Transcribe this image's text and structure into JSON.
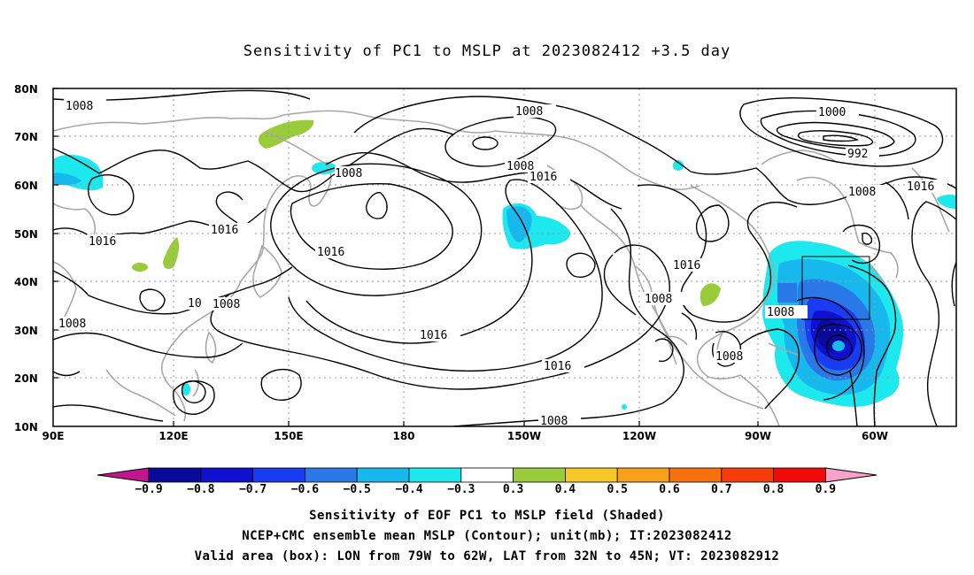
{
  "title": "Sensitivity of PC1 to MSLP at 2023082412 +3.5 day",
  "lat_labels": [
    "80N",
    "70N",
    "60N",
    "50N",
    "40N",
    "30N",
    "20N",
    "10N"
  ],
  "lon_labels": [
    "90E",
    "120E",
    "150E",
    "180",
    "150W",
    "120W",
    "90W",
    "60W"
  ],
  "contour_labels": {
    "c1008_nw": "1008",
    "c1008_aleut": "1008",
    "c1008_ber": "1008",
    "c1008_kam": "1008",
    "c1008_pac_n": "1008",
    "c1000_low": "1000",
    "c992_low": "992",
    "c1008_atl": "1008",
    "c1016_atl": "1016",
    "c1016_asia": "1016",
    "c1016_jp": "1016",
    "c1016_dateline": "1016",
    "c1016_aleut": "1016",
    "c1016_pac_c": "1016",
    "c1016_pac_s": "1016",
    "c1016_na": "1016",
    "c1008_japan_a": "10",
    "c1008_japan_b": "1008",
    "c1008_sea": "1008",
    "c1008_usa": "1008",
    "c1008_east": "1008",
    "c1008_gulf": "1008",
    "c1008_trop": "1008"
  },
  "colorbar": {
    "labels": [
      "-0.9",
      "-0.8",
      "-0.7",
      "-0.6",
      "-0.5",
      "-0.4",
      "-0.3",
      "0.3",
      "0.4",
      "0.5",
      "0.6",
      "0.7",
      "0.8",
      "0.9"
    ],
    "colors": [
      "#0a0a9a",
      "#1010d0",
      "#1a3cf0",
      "#2a78e8",
      "#17b8ee",
      "#1de8ee",
      "#ffffff",
      "#98cc3a",
      "#f5c828",
      "#f6a01c",
      "#f7720f",
      "#f53c0a",
      "#f00a0a"
    ],
    "left_tip_color": "#c0168e",
    "right_tip_color": "#f7a2c8"
  },
  "valid_box": {
    "lon_min": -79,
    "lon_max": -62,
    "lat_min": 32,
    "lat_max": 45
  },
  "footer": {
    "line1": "Sensitivity of EOF PC1 to MSLP field (Shaded)",
    "line2": "NCEP+CMC ensemble mean MSLP (Contour); unit(mb); IT:2023082412",
    "line3": "Valid area (box): LON from 79W to 62W, LAT from 32N to 45N; VT: 2023082912"
  }
}
